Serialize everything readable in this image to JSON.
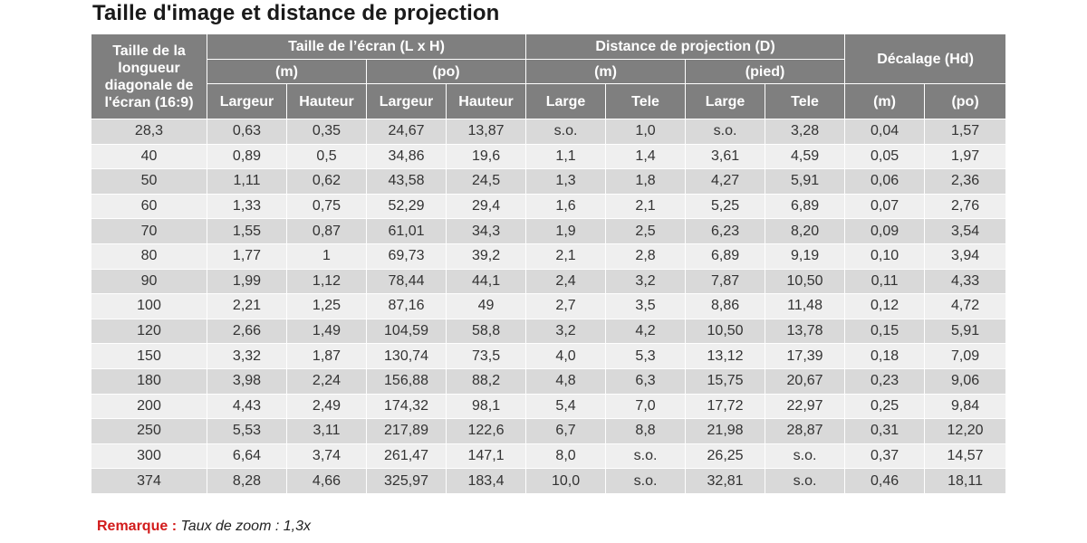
{
  "title": "Taille d'image et distance de projection",
  "header": {
    "diagonal": "Taille de la longueur diagonale de l'écran (16:9)",
    "screen_size": "Taille de l’écran (L x H)",
    "projection_distance": "Distance de projection (D)",
    "offset": "Décalage (Hd)",
    "unit_m": "(m)",
    "unit_po": "(po)",
    "unit_pied": "(pied)",
    "col_largeur": "Largeur",
    "col_hauteur": "Hauteur",
    "col_large": "Large",
    "col_tele": "Tele",
    "offset_m": "(m)",
    "offset_po": "(po)"
  },
  "rows": [
    [
      "28,3",
      "0,63",
      "0,35",
      "24,67",
      "13,87",
      "s.o.",
      "1,0",
      "s.o.",
      "3,28",
      "0,04",
      "1,57"
    ],
    [
      "40",
      "0,89",
      "0,5",
      "34,86",
      "19,6",
      "1,1",
      "1,4",
      "3,61",
      "4,59",
      "0,05",
      "1,97"
    ],
    [
      "50",
      "1,11",
      "0,62",
      "43,58",
      "24,5",
      "1,3",
      "1,8",
      "4,27",
      "5,91",
      "0,06",
      "2,36"
    ],
    [
      "60",
      "1,33",
      "0,75",
      "52,29",
      "29,4",
      "1,6",
      "2,1",
      "5,25",
      "6,89",
      "0,07",
      "2,76"
    ],
    [
      "70",
      "1,55",
      "0,87",
      "61,01",
      "34,3",
      "1,9",
      "2,5",
      "6,23",
      "8,20",
      "0,09",
      "3,54"
    ],
    [
      "80",
      "1,77",
      "1",
      "69,73",
      "39,2",
      "2,1",
      "2,8",
      "6,89",
      "9,19",
      "0,10",
      "3,94"
    ],
    [
      "90",
      "1,99",
      "1,12",
      "78,44",
      "44,1",
      "2,4",
      "3,2",
      "7,87",
      "10,50",
      "0,11",
      "4,33"
    ],
    [
      "100",
      "2,21",
      "1,25",
      "87,16",
      "49",
      "2,7",
      "3,5",
      "8,86",
      "11,48",
      "0,12",
      "4,72"
    ],
    [
      "120",
      "2,66",
      "1,49",
      "104,59",
      "58,8",
      "3,2",
      "4,2",
      "10,50",
      "13,78",
      "0,15",
      "5,91"
    ],
    [
      "150",
      "3,32",
      "1,87",
      "130,74",
      "73,5",
      "4,0",
      "5,3",
      "13,12",
      "17,39",
      "0,18",
      "7,09"
    ],
    [
      "180",
      "3,98",
      "2,24",
      "156,88",
      "88,2",
      "4,8",
      "6,3",
      "15,75",
      "20,67",
      "0,23",
      "9,06"
    ],
    [
      "200",
      "4,43",
      "2,49",
      "174,32",
      "98,1",
      "5,4",
      "7,0",
      "17,72",
      "22,97",
      "0,25",
      "9,84"
    ],
    [
      "250",
      "5,53",
      "3,11",
      "217,89",
      "122,6",
      "6,7",
      "8,8",
      "21,98",
      "28,87",
      "0,31",
      "12,20"
    ],
    [
      "300",
      "6,64",
      "3,74",
      "261,47",
      "147,1",
      "8,0",
      "s.o.",
      "26,25",
      "s.o.",
      "0,37",
      "14,57"
    ],
    [
      "374",
      "8,28",
      "4,66",
      "325,97",
      "183,4",
      "10,0",
      "s.o.",
      "32,81",
      "s.o.",
      "0,46",
      "18,11"
    ]
  ],
  "note": {
    "label": "Remarque :",
    "text": "Taux de zoom : 1,3x"
  },
  "colors": {
    "header_bg": "#7f7f7f",
    "row_dark": "#d9d9d9",
    "row_light": "#efefef",
    "note_label": "#d21b1b"
  }
}
